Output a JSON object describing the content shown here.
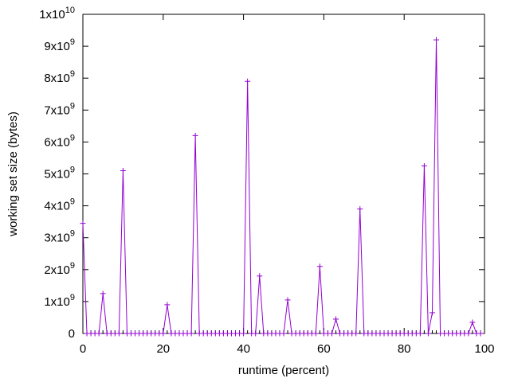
{
  "chart_data": {
    "type": "line",
    "xlabel": "runtime (percent)",
    "ylabel": "working set size (bytes)",
    "xlim": [
      0,
      100
    ],
    "ylim": [
      0,
      10000000000
    ],
    "x_ticks": [
      0,
      20,
      40,
      60,
      80,
      100
    ],
    "y_ticks": [
      {
        "value": 0,
        "mantissa": "0",
        "exp": ""
      },
      {
        "value": 1000000000,
        "mantissa": "1x10",
        "exp": "9"
      },
      {
        "value": 2000000000,
        "mantissa": "2x10",
        "exp": "9"
      },
      {
        "value": 3000000000,
        "mantissa": "3x10",
        "exp": "9"
      },
      {
        "value": 4000000000,
        "mantissa": "4x10",
        "exp": "9"
      },
      {
        "value": 5000000000,
        "mantissa": "5x10",
        "exp": "9"
      },
      {
        "value": 6000000000,
        "mantissa": "6x10",
        "exp": "9"
      },
      {
        "value": 7000000000,
        "mantissa": "7x10",
        "exp": "9"
      },
      {
        "value": 8000000000,
        "mantissa": "8x10",
        "exp": "9"
      },
      {
        "value": 9000000000,
        "mantissa": "9x10",
        "exp": "9"
      },
      {
        "value": 10000000000,
        "mantissa": "1x10",
        "exp": "10"
      }
    ],
    "grid": false,
    "series": [
      {
        "color": "#9400d3",
        "marker": "+",
        "points": [
          [
            0,
            3450000000
          ],
          [
            1,
            0
          ],
          [
            2,
            0
          ],
          [
            3,
            0
          ],
          [
            4,
            0
          ],
          [
            5,
            1250000000
          ],
          [
            6,
            0
          ],
          [
            7,
            0
          ],
          [
            8,
            0
          ],
          [
            9,
            0
          ],
          [
            10,
            5100000000
          ],
          [
            11,
            0
          ],
          [
            12,
            0
          ],
          [
            13,
            0
          ],
          [
            14,
            0
          ],
          [
            15,
            0
          ],
          [
            16,
            0
          ],
          [
            17,
            0
          ],
          [
            18,
            0
          ],
          [
            19,
            0
          ],
          [
            20,
            0
          ],
          [
            21,
            900000000
          ],
          [
            22,
            0
          ],
          [
            23,
            0
          ],
          [
            24,
            0
          ],
          [
            25,
            0
          ],
          [
            26,
            0
          ],
          [
            27,
            0
          ],
          [
            28,
            6200000000
          ],
          [
            29,
            0
          ],
          [
            30,
            0
          ],
          [
            31,
            0
          ],
          [
            32,
            0
          ],
          [
            33,
            0
          ],
          [
            34,
            0
          ],
          [
            35,
            0
          ],
          [
            36,
            0
          ],
          [
            37,
            0
          ],
          [
            38,
            0
          ],
          [
            39,
            0
          ],
          [
            40,
            0
          ],
          [
            41,
            7900000000
          ],
          [
            42,
            0
          ],
          [
            43,
            0
          ],
          [
            44,
            1800000000
          ],
          [
            45,
            0
          ],
          [
            46,
            0
          ],
          [
            47,
            0
          ],
          [
            48,
            0
          ],
          [
            49,
            0
          ],
          [
            50,
            0
          ],
          [
            51,
            1050000000
          ],
          [
            52,
            0
          ],
          [
            53,
            0
          ],
          [
            54,
            0
          ],
          [
            55,
            0
          ],
          [
            56,
            0
          ],
          [
            57,
            0
          ],
          [
            58,
            0
          ],
          [
            59,
            2100000000
          ],
          [
            60,
            0
          ],
          [
            61,
            0
          ],
          [
            62,
            0
          ],
          [
            63,
            450000000
          ],
          [
            64,
            0
          ],
          [
            65,
            0
          ],
          [
            66,
            0
          ],
          [
            67,
            0
          ],
          [
            68,
            0
          ],
          [
            69,
            3900000000
          ],
          [
            70,
            0
          ],
          [
            71,
            0
          ],
          [
            72,
            0
          ],
          [
            73,
            0
          ],
          [
            74,
            0
          ],
          [
            75,
            0
          ],
          [
            76,
            0
          ],
          [
            77,
            0
          ],
          [
            78,
            0
          ],
          [
            79,
            0
          ],
          [
            80,
            0
          ],
          [
            81,
            0
          ],
          [
            82,
            0
          ],
          [
            83,
            0
          ],
          [
            84,
            0
          ],
          [
            85,
            5250000000
          ],
          [
            86,
            0
          ],
          [
            87,
            650000000
          ],
          [
            88,
            9200000000
          ],
          [
            89,
            0
          ],
          [
            90,
            0
          ],
          [
            91,
            0
          ],
          [
            92,
            0
          ],
          [
            93,
            0
          ],
          [
            94,
            0
          ],
          [
            95,
            0
          ],
          [
            96,
            0
          ],
          [
            97,
            350000000
          ],
          [
            98,
            0
          ],
          [
            99,
            0
          ]
        ]
      }
    ]
  }
}
